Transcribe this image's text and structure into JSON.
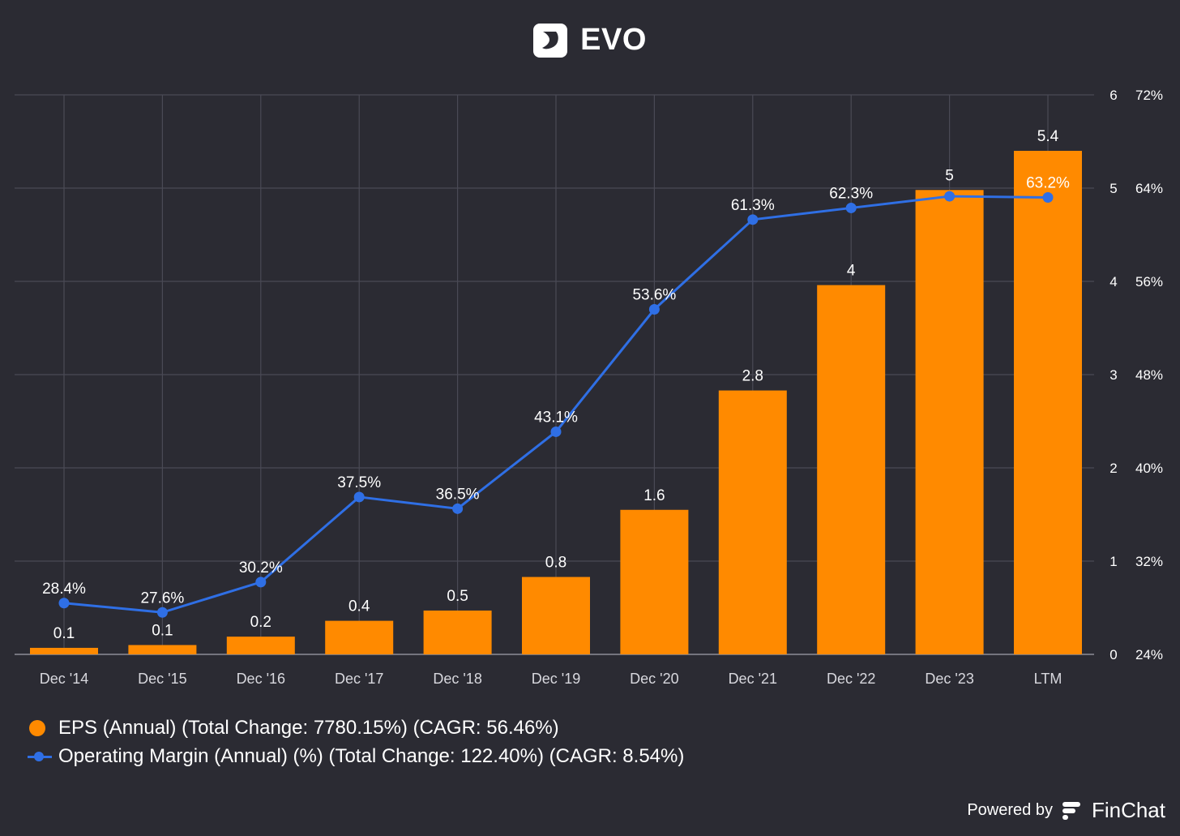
{
  "title": "EVO",
  "chart_data": {
    "type": "bar",
    "title": "EVO",
    "categories": [
      "Dec '14",
      "Dec '15",
      "Dec '16",
      "Dec '17",
      "Dec '18",
      "Dec '19",
      "Dec '20",
      "Dec '21",
      "Dec '22",
      "Dec '23",
      "LTM"
    ],
    "series": [
      {
        "name": "EPS (Annual) (Total Change: 7780.15%) (CAGR: 56.46%)",
        "type": "bar",
        "axis": "left",
        "color": "#ff8a00",
        "values": [
          0.07,
          0.1,
          0.19,
          0.36,
          0.47,
          0.83,
          1.55,
          2.83,
          3.96,
          4.98,
          5.4
        ],
        "labels": [
          "0.1",
          "0.1",
          "0.2",
          "0.4",
          "0.5",
          "0.8",
          "1.6",
          "2.8",
          "4",
          "5",
          "5.4"
        ]
      },
      {
        "name": "Operating Margin (Annual) (%) (Total Change: 122.40%) (CAGR: 8.54%)",
        "type": "line",
        "axis": "right",
        "color": "#2f6fe5",
        "values": [
          28.4,
          27.6,
          30.2,
          37.5,
          36.5,
          43.1,
          53.6,
          61.3,
          62.3,
          63.3,
          63.2
        ],
        "labels": [
          "28.4%",
          "27.6%",
          "30.2%",
          "37.5%",
          "36.5%",
          "43.1%",
          "53.6%",
          "61.3%",
          "62.3%",
          "",
          "63.2%"
        ]
      }
    ],
    "y_left": {
      "range": [
        0,
        6
      ],
      "ticks": [
        "0",
        "1",
        "2",
        "3",
        "4",
        "5",
        "6"
      ]
    },
    "y_right": {
      "range": [
        24,
        72
      ],
      "ticks": [
        "24%",
        "32%",
        "40%",
        "48%",
        "56%",
        "64%",
        "72%"
      ]
    },
    "grid": true,
    "legend_position": "bottom-left"
  },
  "legend": {
    "eps": "EPS (Annual) (Total Change: 7780.15%) (CAGR: 56.46%)",
    "margin": "Operating Margin (Annual) (%) (Total Change: 122.40%) (CAGR: 8.54%)"
  },
  "footer": {
    "powered_by": "Powered by",
    "brand": "FinChat"
  },
  "colors": {
    "background": "#2b2b33",
    "bar": "#ff8a00",
    "line": "#2f6fe5",
    "grid": "#4a4a55"
  }
}
